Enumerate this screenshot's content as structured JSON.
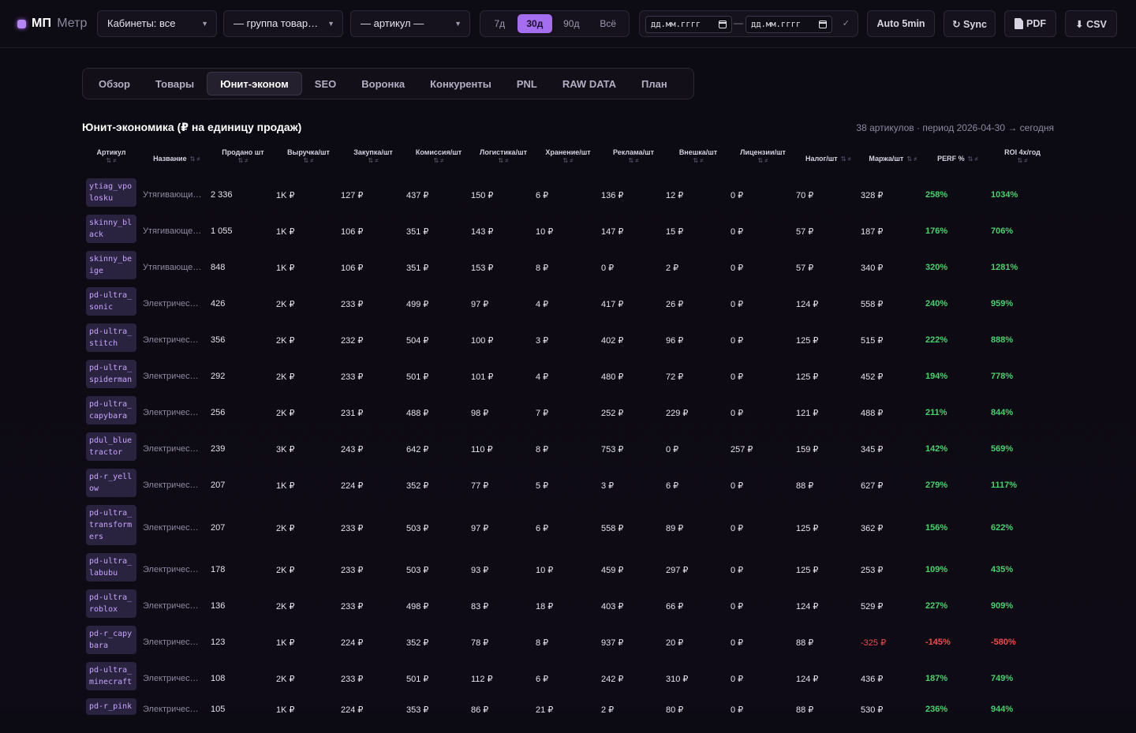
{
  "brand": {
    "name": "МП",
    "sub": "Метр"
  },
  "filters": {
    "cabinets": "Кабинеты: все",
    "group": "— группа товар…",
    "article": "— артикул —"
  },
  "periods": [
    {
      "label": "7д",
      "active": false
    },
    {
      "label": "30д",
      "active": true
    },
    {
      "label": "90д",
      "active": false
    },
    {
      "label": "Всё",
      "active": false
    }
  ],
  "date_range": {
    "from_placeholder": "дд.мм.гггг",
    "to_placeholder": "дд.мм.гггг",
    "separator": "—",
    "apply": "✓"
  },
  "actions": {
    "auto": "Auto 5min",
    "sync": "↻ Sync",
    "pdf": "PDF",
    "csv": "⬇ CSV"
  },
  "tabs": [
    {
      "label": "Обзор",
      "active": false
    },
    {
      "label": "Товары",
      "active": false
    },
    {
      "label": "Юнит-эконом",
      "active": true
    },
    {
      "label": "SEO",
      "active": false
    },
    {
      "label": "Воронка",
      "active": false
    },
    {
      "label": "Конкуренты",
      "active": false
    },
    {
      "label": "PNL",
      "active": false
    },
    {
      "label": "RAW DATA",
      "active": false
    },
    {
      "label": "План",
      "active": false
    }
  ],
  "section": {
    "title": "Юнит-экономика (₽ на единицу продаж)",
    "meta": "38 артикулов · период 2026-04-30 → сегодня"
  },
  "table": {
    "sort_glyph": "⇅ ≠",
    "columns": [
      {
        "label": "Артикул",
        "stacked": true
      },
      {
        "label": "Название",
        "stacked": false
      },
      {
        "label": "Продано шт",
        "stacked": true
      },
      {
        "label": "Выручка/шт",
        "stacked": true
      },
      {
        "label": "Закупка/шт",
        "stacked": true
      },
      {
        "label": "Комиссия/шт",
        "stacked": true
      },
      {
        "label": "Логистика/шт",
        "stacked": true
      },
      {
        "label": "Хранение/шт",
        "stacked": true
      },
      {
        "label": "Реклама/шт",
        "stacked": true
      },
      {
        "label": "Внешка/шт",
        "stacked": true
      },
      {
        "label": "Лицензии/шт",
        "stacked": true
      },
      {
        "label": "Налог/шт",
        "stacked": false
      },
      {
        "label": "Маржа/шт",
        "stacked": false
      },
      {
        "label": "PERF %",
        "stacked": false
      },
      {
        "label": "ROI 4x/год",
        "stacked": true
      }
    ],
    "rows": [
      {
        "sku": "ytiag_vpolosku",
        "name": "Утягивающи…",
        "sold": "2 336",
        "rev": "1K ₽",
        "buy": "127 ₽",
        "comm": "437 ₽",
        "log": "150 ₽",
        "stor": "6 ₽",
        "ads": "136 ₽",
        "ext": "12 ₽",
        "lic": "0 ₽",
        "tax": "70 ₽",
        "margin": "328 ₽",
        "perf": "258%",
        "roi": "1034%"
      },
      {
        "sku": "skinny_black",
        "name": "Утягивающе…",
        "sold": "1 055",
        "rev": "1K ₽",
        "buy": "106 ₽",
        "comm": "351 ₽",
        "log": "143 ₽",
        "stor": "10 ₽",
        "ads": "147 ₽",
        "ext": "15 ₽",
        "lic": "0 ₽",
        "tax": "57 ₽",
        "margin": "187 ₽",
        "perf": "176%",
        "roi": "706%"
      },
      {
        "sku": "skinny_beige",
        "name": "Утягивающе…",
        "sold": "848",
        "rev": "1K ₽",
        "buy": "106 ₽",
        "comm": "351 ₽",
        "log": "153 ₽",
        "stor": "8 ₽",
        "ads": "0 ₽",
        "ext": "2 ₽",
        "lic": "0 ₽",
        "tax": "57 ₽",
        "margin": "340 ₽",
        "perf": "320%",
        "roi": "1281%"
      },
      {
        "sku": "pd-ultra_sonic",
        "name": "Электричес…",
        "sold": "426",
        "rev": "2K ₽",
        "buy": "233 ₽",
        "comm": "499 ₽",
        "log": "97 ₽",
        "stor": "4 ₽",
        "ads": "417 ₽",
        "ext": "26 ₽",
        "lic": "0 ₽",
        "tax": "124 ₽",
        "margin": "558 ₽",
        "perf": "240%",
        "roi": "959%"
      },
      {
        "sku": "pd-ultra_stitch",
        "name": "Электричес…",
        "sold": "356",
        "rev": "2K ₽",
        "buy": "232 ₽",
        "comm": "504 ₽",
        "log": "100 ₽",
        "stor": "3 ₽",
        "ads": "402 ₽",
        "ext": "96 ₽",
        "lic": "0 ₽",
        "tax": "125 ₽",
        "margin": "515 ₽",
        "perf": "222%",
        "roi": "888%"
      },
      {
        "sku": "pd-ultra_spiderman",
        "name": "Электричес…",
        "sold": "292",
        "rev": "2K ₽",
        "buy": "233 ₽",
        "comm": "501 ₽",
        "log": "101 ₽",
        "stor": "4 ₽",
        "ads": "480 ₽",
        "ext": "72 ₽",
        "lic": "0 ₽",
        "tax": "125 ₽",
        "margin": "452 ₽",
        "perf": "194%",
        "roi": "778%"
      },
      {
        "sku": "pd-ultra_capybara",
        "name": "Электричес…",
        "sold": "256",
        "rev": "2K ₽",
        "buy": "231 ₽",
        "comm": "488 ₽",
        "log": "98 ₽",
        "stor": "7 ₽",
        "ads": "252 ₽",
        "ext": "229 ₽",
        "lic": "0 ₽",
        "tax": "121 ₽",
        "margin": "488 ₽",
        "perf": "211%",
        "roi": "844%"
      },
      {
        "sku": "pdul_bluetractor",
        "name": "Электричес…",
        "sold": "239",
        "rev": "3K ₽",
        "buy": "243 ₽",
        "comm": "642 ₽",
        "log": "110 ₽",
        "stor": "8 ₽",
        "ads": "753 ₽",
        "ext": "0 ₽",
        "lic": "257 ₽",
        "tax": "159 ₽",
        "margin": "345 ₽",
        "perf": "142%",
        "roi": "569%"
      },
      {
        "sku": "pd-r_yellow",
        "name": "Электричес…",
        "sold": "207",
        "rev": "1K ₽",
        "buy": "224 ₽",
        "comm": "352 ₽",
        "log": "77 ₽",
        "stor": "5 ₽",
        "ads": "3 ₽",
        "ext": "6 ₽",
        "lic": "0 ₽",
        "tax": "88 ₽",
        "margin": "627 ₽",
        "perf": "279%",
        "roi": "1117%"
      },
      {
        "sku": "pd-ultra_transformers",
        "name": "Электричес…",
        "sold": "207",
        "rev": "2K ₽",
        "buy": "233 ₽",
        "comm": "503 ₽",
        "log": "97 ₽",
        "stor": "6 ₽",
        "ads": "558 ₽",
        "ext": "89 ₽",
        "lic": "0 ₽",
        "tax": "125 ₽",
        "margin": "362 ₽",
        "perf": "156%",
        "roi": "622%"
      },
      {
        "sku": "pd-ultra_labubu",
        "name": "Электричес…",
        "sold": "178",
        "rev": "2K ₽",
        "buy": "233 ₽",
        "comm": "503 ₽",
        "log": "93 ₽",
        "stor": "10 ₽",
        "ads": "459 ₽",
        "ext": "297 ₽",
        "lic": "0 ₽",
        "tax": "125 ₽",
        "margin": "253 ₽",
        "perf": "109%",
        "roi": "435%"
      },
      {
        "sku": "pd-ultra_roblox",
        "name": "Электричес…",
        "sold": "136",
        "rev": "2K ₽",
        "buy": "233 ₽",
        "comm": "498 ₽",
        "log": "83 ₽",
        "stor": "18 ₽",
        "ads": "403 ₽",
        "ext": "66 ₽",
        "lic": "0 ₽",
        "tax": "124 ₽",
        "margin": "529 ₽",
        "perf": "227%",
        "roi": "909%"
      },
      {
        "sku": "pd-r_capybara",
        "name": "Электричес…",
        "sold": "123",
        "rev": "1K ₽",
        "buy": "224 ₽",
        "comm": "352 ₽",
        "log": "78 ₽",
        "stor": "8 ₽",
        "ads": "937 ₽",
        "ext": "20 ₽",
        "lic": "0 ₽",
        "tax": "88 ₽",
        "margin": "-325 ₽",
        "perf": "-145%",
        "roi": "-580%"
      },
      {
        "sku": "pd-ultra_minecraft",
        "name": "Электричес…",
        "sold": "108",
        "rev": "2K ₽",
        "buy": "233 ₽",
        "comm": "501 ₽",
        "log": "112 ₽",
        "stor": "6 ₽",
        "ads": "242 ₽",
        "ext": "310 ₽",
        "lic": "0 ₽",
        "tax": "124 ₽",
        "margin": "436 ₽",
        "perf": "187%",
        "roi": "749%"
      },
      {
        "sku": "pd-r_pink",
        "name": "Электричес…",
        "sold": "105",
        "rev": "1K ₽",
        "buy": "224 ₽",
        "comm": "353 ₽",
        "log": "86 ₽",
        "stor": "21 ₽",
        "ads": "2 ₽",
        "ext": "80 ₽",
        "lic": "0 ₽",
        "tax": "88 ₽",
        "margin": "530 ₽",
        "perf": "236%",
        "roi": "944%"
      }
    ]
  }
}
